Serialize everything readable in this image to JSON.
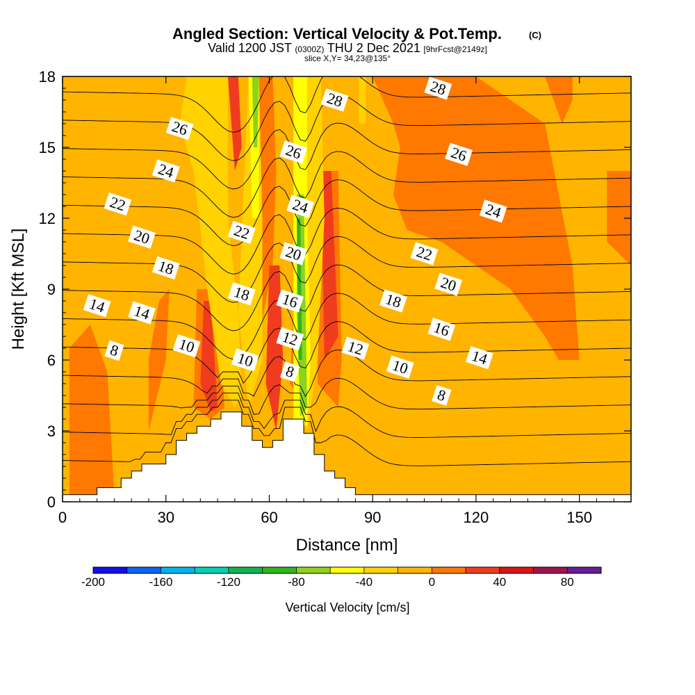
{
  "header": {
    "title_main": "Angled Section: Vertical Velocity & Pot.Temp.",
    "title_mark": "(C)",
    "valid_a": "Valid 1200 JST",
    "valid_b": "(0300Z)",
    "valid_c": "THU 2 Dec 2021",
    "valid_d": "[9hrFcst@2149z]",
    "slice": "slice X,Y= 34,23@135°"
  },
  "chart_data": {
    "type": "heatmap",
    "title": "Angled Section: Vertical Velocity & Pot.Temp. (C)",
    "xlabel": "Distance [nm]",
    "ylabel": "Height [Kft MSL]",
    "xlim": [
      0,
      165
    ],
    "ylim": [
      0,
      18
    ],
    "x_ticks": [
      0,
      30,
      60,
      90,
      120,
      150
    ],
    "y_ticks": [
      0,
      3,
      6,
      9,
      12,
      15,
      18
    ],
    "colorbar": {
      "title": "Vertical Velocity [cm/s]",
      "range": [
        -200,
        100
      ],
      "step": 20,
      "tick_values": [
        -200,
        -160,
        -120,
        -80,
        -40,
        0,
        40,
        80
      ],
      "colors": [
        "#1010e8",
        "#0a64f0",
        "#00b4f0",
        "#00d2b4",
        "#14b450",
        "#32b41e",
        "#8cd21e",
        "#ffff00",
        "#ffd200",
        "#ffb400",
        "#ff7800",
        "#f03c1e",
        "#dc1414",
        "#a0144b",
        "#641e96"
      ]
    },
    "terrain_profile": [
      [
        0,
        0.3
      ],
      [
        10,
        0.3
      ],
      [
        10,
        0.6
      ],
      [
        17,
        0.6
      ],
      [
        17,
        1.0
      ],
      [
        20,
        1.0
      ],
      [
        20,
        1.3
      ],
      [
        23,
        1.3
      ],
      [
        23,
        1.6
      ],
      [
        30,
        1.6
      ],
      [
        30,
        2.0
      ],
      [
        33,
        2.0
      ],
      [
        33,
        2.6
      ],
      [
        36,
        2.6
      ],
      [
        36,
        2.9
      ],
      [
        39,
        2.9
      ],
      [
        39,
        3.2
      ],
      [
        43,
        3.2
      ],
      [
        43,
        3.5
      ],
      [
        46,
        3.5
      ],
      [
        46,
        3.8
      ],
      [
        52,
        3.8
      ],
      [
        52,
        3.2
      ],
      [
        55,
        3.2
      ],
      [
        55,
        2.6
      ],
      [
        58,
        2.6
      ],
      [
        58,
        2.3
      ],
      [
        61,
        2.3
      ],
      [
        61,
        2.6
      ],
      [
        64,
        2.6
      ],
      [
        64,
        3.5
      ],
      [
        70,
        3.5
      ],
      [
        70,
        2.9
      ],
      [
        73,
        2.9
      ],
      [
        73,
        2.0
      ],
      [
        76,
        2.0
      ],
      [
        76,
        1.3
      ],
      [
        79,
        1.3
      ],
      [
        79,
        1.0
      ],
      [
        82,
        1.0
      ],
      [
        82,
        0.6
      ],
      [
        85,
        0.6
      ],
      [
        85,
        0.3
      ],
      [
        165,
        0.3
      ]
    ],
    "velocity_regions": [
      {
        "value": -5,
        "points": [
          [
            0,
            0
          ],
          [
            165,
            0
          ],
          [
            165,
            18
          ],
          [
            0,
            18
          ]
        ]
      },
      {
        "value": 5,
        "points": [
          [
            2,
            6.5
          ],
          [
            8,
            7.5
          ],
          [
            13,
            5.5
          ],
          [
            15,
            0.3
          ],
          [
            2,
            0.3
          ]
        ]
      },
      {
        "value": 5,
        "points": [
          [
            25,
            3
          ],
          [
            30,
            6
          ],
          [
            31,
            9.0
          ],
          [
            28,
            8.5
          ],
          [
            25,
            6
          ]
        ]
      },
      {
        "value": 5,
        "points": [
          [
            90,
            18
          ],
          [
            120,
            18
          ],
          [
            140,
            16
          ],
          [
            148,
            10
          ],
          [
            150,
            6
          ],
          [
            144,
            6
          ],
          [
            140,
            7
          ],
          [
            130,
            9
          ],
          [
            120,
            10
          ],
          [
            110,
            11
          ],
          [
            100,
            11.5
          ],
          [
            96,
            13
          ],
          [
            98,
            15
          ],
          [
            96,
            16
          ]
        ]
      },
      {
        "value": 5,
        "points": [
          [
            140,
            18
          ],
          [
            148,
            18
          ],
          [
            148,
            17
          ],
          [
            145,
            16
          ]
        ]
      },
      {
        "value": 5,
        "points": [
          [
            158,
            14
          ],
          [
            165,
            14
          ],
          [
            165,
            10
          ],
          [
            158,
            11
          ]
        ]
      },
      {
        "value": 5,
        "points": [
          [
            54,
            18
          ],
          [
            61,
            18
          ],
          [
            62,
            14
          ],
          [
            61,
            10
          ],
          [
            57,
            7
          ],
          [
            53,
            10
          ]
        ]
      },
      {
        "value": 5,
        "points": [
          [
            68,
            11
          ],
          [
            72,
            11
          ],
          [
            73,
            7
          ],
          [
            70,
            4
          ],
          [
            66,
            5
          ]
        ]
      },
      {
        "value": 5,
        "points": [
          [
            75,
            14
          ],
          [
            80,
            14
          ],
          [
            81,
            6
          ],
          [
            80,
            4
          ],
          [
            74,
            5
          ]
        ]
      },
      {
        "value": 5,
        "points": [
          [
            39,
            9
          ],
          [
            45,
            9
          ],
          [
            47,
            4
          ],
          [
            43,
            3.5
          ],
          [
            38,
            4
          ]
        ]
      },
      {
        "value": 35,
        "points": [
          [
            41,
            8.5
          ],
          [
            43,
            8.5
          ],
          [
            45,
            4
          ],
          [
            43,
            3.8
          ],
          [
            40,
            5
          ]
        ]
      },
      {
        "value": 35,
        "points": [
          [
            48,
            18
          ],
          [
            51,
            18
          ],
          [
            52,
            15
          ],
          [
            50,
            14
          ]
        ]
      },
      {
        "value": 35,
        "points": [
          [
            60,
            10
          ],
          [
            63,
            10
          ],
          [
            64,
            6
          ],
          [
            62,
            3
          ],
          [
            59,
            5
          ]
        ]
      },
      {
        "value": 35,
        "points": [
          [
            75,
            14
          ],
          [
            78,
            14
          ],
          [
            80,
            7
          ],
          [
            76,
            6
          ]
        ]
      },
      {
        "value": -35,
        "points": [
          [
            36,
            18
          ],
          [
            48,
            18
          ],
          [
            48,
            12
          ],
          [
            51,
            8
          ],
          [
            52,
            4.5
          ],
          [
            50,
            4
          ],
          [
            46,
            5
          ],
          [
            42,
            9
          ],
          [
            38,
            14
          ],
          [
            34,
            16
          ]
        ]
      },
      {
        "value": -35,
        "points": [
          [
            54,
            18
          ],
          [
            57,
            18
          ],
          [
            58,
            12
          ],
          [
            58,
            6
          ],
          [
            54,
            4
          ],
          [
            51,
            8
          ]
        ]
      },
      {
        "value": -35,
        "points": [
          [
            69,
            18
          ],
          [
            75,
            18
          ],
          [
            76,
            12
          ],
          [
            74,
            6
          ],
          [
            71,
            3
          ],
          [
            68,
            4
          ]
        ]
      },
      {
        "value": -35,
        "points": [
          [
            86,
            18
          ],
          [
            88,
            18
          ],
          [
            88,
            16
          ],
          [
            86,
            16
          ]
        ]
      },
      {
        "value": -55,
        "points": [
          [
            54,
            18
          ],
          [
            57,
            18
          ],
          [
            57,
            12
          ],
          [
            55,
            12
          ]
        ]
      },
      {
        "value": -55,
        "points": [
          [
            67,
            18
          ],
          [
            71,
            18
          ],
          [
            71,
            12
          ],
          [
            72,
            6
          ],
          [
            71,
            3.2
          ],
          [
            67,
            3.5
          ],
          [
            67,
            12
          ]
        ]
      },
      {
        "value": -75,
        "points": [
          [
            55,
            18
          ],
          [
            57,
            18
          ],
          [
            56.5,
            15
          ],
          [
            55.5,
            15
          ]
        ]
      },
      {
        "value": -75,
        "points": [
          [
            68,
            13
          ],
          [
            70,
            13
          ],
          [
            71,
            4
          ],
          [
            69,
            3.6
          ],
          [
            68,
            8
          ]
        ]
      },
      {
        "value": -95,
        "points": [
          [
            68,
            12
          ],
          [
            69,
            12
          ],
          [
            69.5,
            6
          ],
          [
            68.5,
            6
          ]
        ]
      }
    ],
    "potential_temperature_contours": [
      2,
      4,
      6,
      8,
      10,
      12,
      14,
      16,
      18,
      20,
      22,
      24,
      26,
      28
    ],
    "contour_labels": [
      {
        "text": "28",
        "x": 79,
        "y": 17.0
      },
      {
        "text": "28",
        "x": 109,
        "y": 17.5
      },
      {
        "text": "26",
        "x": 34,
        "y": 15.8
      },
      {
        "text": "26",
        "x": 67,
        "y": 14.8
      },
      {
        "text": "26",
        "x": 115,
        "y": 14.7
      },
      {
        "text": "24",
        "x": 30,
        "y": 14.0
      },
      {
        "text": "24",
        "x": 69,
        "y": 12.5
      },
      {
        "text": "24",
        "x": 125,
        "y": 12.3
      },
      {
        "text": "22",
        "x": 16,
        "y": 12.6
      },
      {
        "text": "22",
        "x": 52,
        "y": 11.4
      },
      {
        "text": "22",
        "x": 105,
        "y": 10.5
      },
      {
        "text": "20",
        "x": 23,
        "y": 11.2
      },
      {
        "text": "20",
        "x": 67,
        "y": 10.5
      },
      {
        "text": "20",
        "x": 112,
        "y": 9.2
      },
      {
        "text": "18",
        "x": 30,
        "y": 9.9
      },
      {
        "text": "18",
        "x": 52,
        "y": 8.8
      },
      {
        "text": "18",
        "x": 96,
        "y": 8.5
      },
      {
        "text": "16",
        "x": 66,
        "y": 8.5
      },
      {
        "text": "16",
        "x": 110,
        "y": 7.3
      },
      {
        "text": "14",
        "x": 10,
        "y": 8.3
      },
      {
        "text": "14",
        "x": 23,
        "y": 8.0
      },
      {
        "text": "14",
        "x": 121,
        "y": 6.1
      },
      {
        "text": "12",
        "x": 66,
        "y": 6.9
      },
      {
        "text": "12",
        "x": 85,
        "y": 6.5
      },
      {
        "text": "10",
        "x": 36,
        "y": 6.6
      },
      {
        "text": "10",
        "x": 53,
        "y": 6.0
      },
      {
        "text": "10",
        "x": 98,
        "y": 5.7
      },
      {
        "text": "8",
        "x": 15,
        "y": 6.4
      },
      {
        "text": "8",
        "x": 66,
        "y": 5.5
      },
      {
        "text": "8",
        "x": 110,
        "y": 4.5
      }
    ]
  }
}
